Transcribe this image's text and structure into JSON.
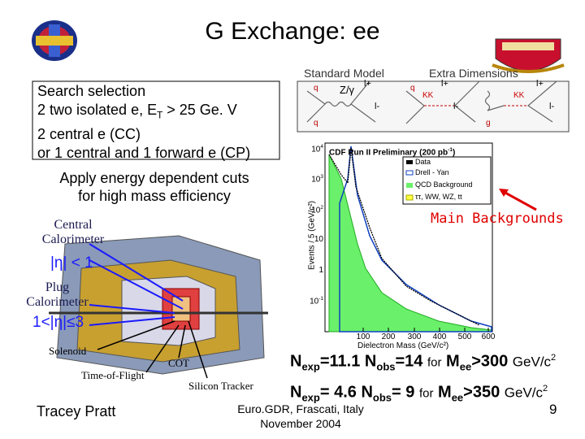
{
  "title": "G Exchange: ee",
  "feynman": {
    "standard_model": "Standard Model",
    "extra_dimensions": "Extra Dimensions",
    "boson": "Z/γ",
    "l_plus": "l+",
    "l_minus": "l-",
    "quark": "q",
    "kk": "KK",
    "gluon": "g"
  },
  "selection": {
    "heading": "Search selection",
    "line1": [
      "2 two isolated e, E",
      "T",
      " > 25 Ge. V"
    ],
    "line2": "2 central e (CC)",
    "line3": "or 1 central and 1 forward e (CP)"
  },
  "cuts": [
    "Apply energy dependent cuts",
    "for high mass efficiency"
  ],
  "detector": {
    "central": "Central Calorimeter",
    "central_eta": "|η| < 1",
    "plug": "Plug Calorimeter",
    "plug_eta": "1<|η|≤3",
    "solenoid": "Solenoid",
    "tof": "Time-of-Flight",
    "cot": "COT",
    "silicon": "Silicon Tracker"
  },
  "plot": {
    "title": [
      "CDF Run II Preliminary (200 pb",
      "-1",
      ")"
    ],
    "legend": [
      "Data",
      "Drell - Yan",
      "QCD Background",
      "ττ, WW, WZ, tt"
    ],
    "xlabel": "Dielectron Mass (GeV/c²)",
    "ylabel": "Events / 5 (GeV/c²)",
    "xticks": [
      "100",
      "200",
      "300",
      "400",
      "500",
      "600"
    ],
    "yticks": [
      [
        "10",
        "4"
      ],
      [
        "10",
        "3"
      ],
      [
        "10",
        "2"
      ],
      [
        "10",
        ""
      ],
      [
        "1",
        ""
      ],
      [
        "10",
        "-1"
      ]
    ]
  },
  "main_backgrounds": "Main Backgrounds",
  "stats": [
    [
      "N",
      "exp",
      "=11.1 N",
      "obs",
      "=14 ",
      "for",
      " M",
      "ee",
      ">300 ",
      "GeV/c",
      "2"
    ],
    [
      "N",
      "exp",
      "= 4.6  N",
      "obs",
      "=  9 ",
      "for",
      " M",
      "ee",
      ">350 ",
      "GeV/c",
      "2"
    ]
  ],
  "footer": {
    "author": "Tracey Pratt",
    "venue": "Euro.GDR, Frascati, Italy",
    "date": "November 2004",
    "page": "9"
  }
}
